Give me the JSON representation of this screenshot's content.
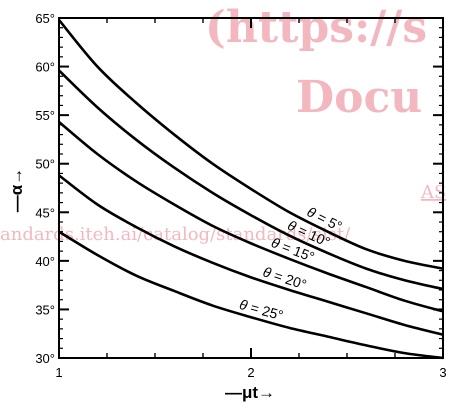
{
  "chart_data": {
    "type": "line",
    "title": "",
    "xlabel": "—μt→",
    "ylabel": "—α→",
    "xlim": [
      1,
      3
    ],
    "ylim": [
      30,
      65
    ],
    "x_ticks": [
      "1",
      "2",
      "3"
    ],
    "y_ticks": [
      "30°",
      "35°",
      "40°",
      "45°",
      "50°",
      "55°",
      "60°",
      "65°"
    ],
    "grid": false,
    "series": [
      {
        "name": "θ = 5°",
        "points": [
          [
            1,
            64.8
          ],
          [
            1.2,
            60.0
          ],
          [
            1.4,
            56.3
          ],
          [
            1.6,
            53.0
          ],
          [
            1.8,
            50.0
          ],
          [
            2.0,
            47.4
          ],
          [
            2.2,
            45.0
          ],
          [
            2.4,
            43.0
          ],
          [
            2.6,
            41.2
          ],
          [
            2.8,
            40.0
          ],
          [
            3.0,
            39.2
          ]
        ]
      },
      {
        "name": "θ = 10°",
        "points": [
          [
            1,
            59.6
          ],
          [
            1.2,
            55.8
          ],
          [
            1.4,
            52.5
          ],
          [
            1.6,
            49.6
          ],
          [
            1.8,
            47.0
          ],
          [
            2.0,
            44.7
          ],
          [
            2.2,
            42.6
          ],
          [
            2.4,
            40.8
          ],
          [
            2.6,
            39.2
          ],
          [
            2.8,
            38.0
          ],
          [
            3.0,
            37.1
          ]
        ]
      },
      {
        "name": "θ = 15°",
        "points": [
          [
            1,
            54.3
          ],
          [
            1.2,
            51.0
          ],
          [
            1.4,
            48.2
          ],
          [
            1.6,
            45.8
          ],
          [
            1.8,
            43.6
          ],
          [
            2.0,
            41.8
          ],
          [
            2.2,
            40.2
          ],
          [
            2.4,
            38.7
          ],
          [
            2.6,
            37.3
          ],
          [
            2.8,
            35.9
          ],
          [
            3.0,
            34.8
          ]
        ]
      },
      {
        "name": "θ = 20°",
        "points": [
          [
            1,
            48.8
          ],
          [
            1.2,
            45.8
          ],
          [
            1.4,
            43.5
          ],
          [
            1.6,
            41.5
          ],
          [
            1.8,
            39.8
          ],
          [
            2.0,
            38.3
          ],
          [
            2.2,
            37.0
          ],
          [
            2.4,
            35.8
          ],
          [
            2.6,
            34.6
          ],
          [
            2.8,
            33.4
          ],
          [
            3.0,
            32.4
          ]
        ]
      },
      {
        "name": "θ = 25°",
        "points": [
          [
            1,
            43.0
          ],
          [
            1.2,
            40.6
          ],
          [
            1.4,
            38.5
          ],
          [
            1.6,
            36.9
          ],
          [
            1.8,
            35.4
          ],
          [
            2.0,
            34.2
          ],
          [
            2.2,
            33.1
          ],
          [
            2.4,
            32.2
          ],
          [
            2.6,
            31.3
          ],
          [
            2.8,
            30.5
          ],
          [
            3.0,
            30.0
          ]
        ]
      }
    ]
  },
  "watermark": {
    "line1": "(https://s",
    "line2": "Docu",
    "line3": "AS",
    "line4": "andards.iteh.ai/catalog/standards/sist/"
  }
}
